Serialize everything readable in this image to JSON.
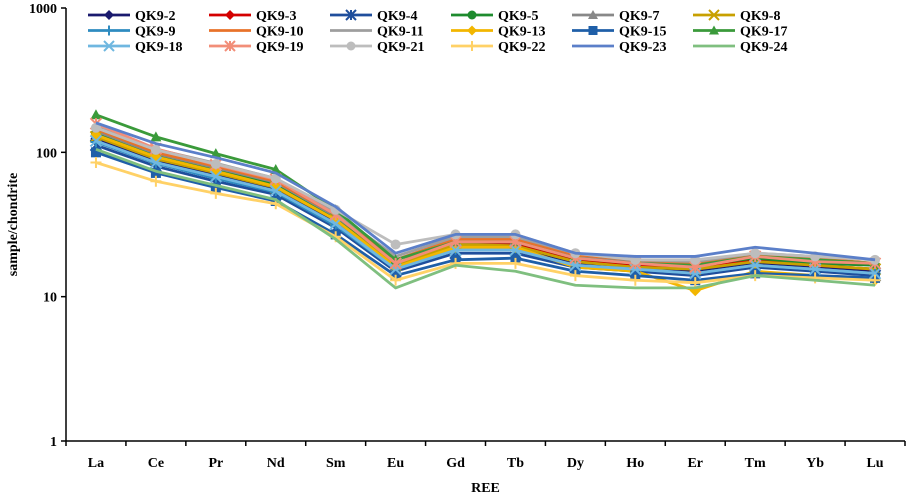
{
  "chart_data": {
    "type": "line",
    "xlabel": "REE",
    "ylabel": "sample/chondrite",
    "yscale": "log",
    "ylim": [
      1,
      1000
    ],
    "yticks": [
      1,
      10,
      100,
      1000
    ],
    "ytick_labels": [
      "1",
      "10",
      "100",
      "1000"
    ],
    "legend_position": "top",
    "categories": [
      "La",
      "Ce",
      "Pr",
      "Nd",
      "Sm",
      "Eu",
      "Gd",
      "Tb",
      "Dy",
      "Ho",
      "Er",
      "Tm",
      "Yb",
      "Lu"
    ],
    "series": [
      {
        "name": "QK9-2",
        "color": "#1a1a6e",
        "marker": "diamond",
        "values": [
          125,
          88,
          70,
          56,
          33,
          16,
          22,
          22,
          17,
          16,
          15,
          17,
          16,
          15
        ]
      },
      {
        "name": "QK9-3",
        "color": "#d40000",
        "marker": "diamond",
        "values": [
          130,
          92,
          73,
          58,
          34,
          17,
          23,
          23,
          18,
          16.5,
          15.5,
          18,
          16.5,
          15.5
        ]
      },
      {
        "name": "QK9-4",
        "color": "#1f4e9c",
        "marker": "star",
        "values": [
          112,
          80,
          63,
          51,
          30,
          15,
          20,
          20,
          16,
          15,
          14,
          16,
          15,
          14
        ]
      },
      {
        "name": "QK9-5",
        "color": "#1e8b2e",
        "marker": "circle",
        "values": [
          135,
          95,
          75,
          60,
          35,
          17,
          24,
          24,
          18.5,
          17,
          16.5,
          18.5,
          17,
          16.5
        ]
      },
      {
        "name": "QK9-7",
        "color": "#888888",
        "marker": "triangle",
        "values": [
          140,
          98,
          78,
          62,
          36,
          18,
          25,
          25,
          19,
          17.5,
          17,
          19,
          18,
          17
        ]
      },
      {
        "name": "QK9-8",
        "color": "#c8a000",
        "marker": "x",
        "values": [
          128,
          90,
          72,
          57,
          34,
          16.5,
          23,
          22.5,
          17.5,
          16,
          15.5,
          17.5,
          16.5,
          15.5
        ]
      },
      {
        "name": "QK9-9",
        "color": "#2e8bc0",
        "marker": "plus",
        "values": [
          118,
          84,
          66,
          53,
          31,
          15.5,
          21,
          21,
          16.5,
          15.5,
          14.5,
          16.5,
          15.5,
          14.5
        ]
      },
      {
        "name": "QK9-10",
        "color": "#e8722a",
        "marker": "none",
        "values": [
          145,
          100,
          80,
          63,
          37,
          18,
          25,
          25,
          19.5,
          18,
          17,
          19.5,
          18.5,
          17
        ]
      },
      {
        "name": "QK9-11",
        "color": "#9e9e9e",
        "marker": "none",
        "values": [
          150,
          105,
          84,
          66,
          38,
          19,
          26,
          26,
          20,
          18,
          17.5,
          20,
          19,
          18
        ]
      },
      {
        "name": "QK9-13",
        "color": "#f2b600",
        "marker": "diamond",
        "values": [
          132,
          93,
          74,
          58,
          34,
          16,
          22,
          22,
          16,
          15,
          11,
          15,
          14,
          13
        ]
      },
      {
        "name": "QK9-15",
        "color": "#1f5fa8",
        "marker": "square",
        "values": [
          100,
          72,
          57,
          46,
          27,
          14,
          18,
          18.5,
          15,
          14,
          13,
          14.5,
          14,
          13.5
        ]
      },
      {
        "name": "QK9-17",
        "color": "#3a9a3a",
        "marker": "triangle",
        "values": [
          182,
          128,
          98,
          76,
          40,
          18,
          24,
          24,
          18.5,
          17,
          16.5,
          19,
          18,
          17
        ]
      },
      {
        "name": "QK9-18",
        "color": "#6fb7e0",
        "marker": "x",
        "values": [
          120,
          85,
          68,
          54,
          32,
          15.5,
          21,
          21,
          16.5,
          15.5,
          14.5,
          16.5,
          15.5,
          14.5
        ]
      },
      {
        "name": "QK9-19",
        "color": "#f28e78",
        "marker": "star",
        "values": [
          158,
          106,
          82,
          65,
          37,
          17,
          24,
          24,
          18.5,
          17,
          16,
          19,
          17.5,
          17
        ]
      },
      {
        "name": "QK9-21",
        "color": "#bdbdbd",
        "marker": "circle",
        "values": [
          148,
          104,
          83,
          66,
          40,
          23,
          27,
          27,
          20,
          18,
          18,
          20,
          19,
          18
        ]
      },
      {
        "name": "QK9-22",
        "color": "#ffd166",
        "marker": "plus",
        "values": [
          85,
          63,
          52,
          44,
          26,
          13,
          17,
          17,
          14,
          13,
          12.5,
          14,
          13.5,
          13
        ]
      },
      {
        "name": "QK9-23",
        "color": "#5b7fc9",
        "marker": "none",
        "values": [
          160,
          115,
          92,
          72,
          42,
          20,
          27,
          27,
          20,
          19,
          19,
          22,
          20,
          18
        ]
      },
      {
        "name": "QK9-24",
        "color": "#7fbf7f",
        "marker": "none",
        "values": [
          105,
          74,
          59,
          47,
          25,
          11.5,
          16.5,
          15,
          12,
          11.5,
          11.5,
          14,
          13,
          12
        ]
      }
    ]
  }
}
